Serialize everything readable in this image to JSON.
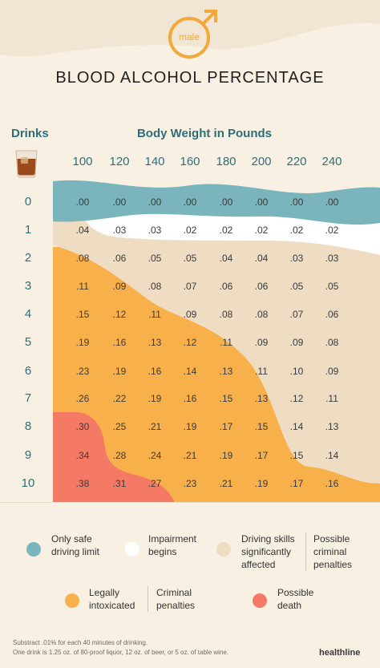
{
  "header": {
    "gender_label": "male",
    "title": "BLOOD ALCOHOL PERCENTAGE"
  },
  "table": {
    "drinks_label": "Drinks",
    "weight_label": "Body Weight in Pounds",
    "weights": [
      "100",
      "120",
      "140",
      "160",
      "180",
      "200",
      "220",
      "240"
    ],
    "drinks": [
      "0",
      "1",
      "2",
      "3",
      "4",
      "5",
      "6",
      "7",
      "8",
      "9",
      "10"
    ],
    "values": [
      [
        ".00",
        ".00",
        ".00",
        ".00",
        ".00",
        ".00",
        ".00",
        ".00"
      ],
      [
        ".04",
        ".03",
        ".03",
        ".02",
        ".02",
        ".02",
        ".02",
        ".02"
      ],
      [
        ".08",
        ".06",
        ".05",
        ".05",
        ".04",
        ".04",
        ".03",
        ".03"
      ],
      [
        ".11",
        ".09",
        ".08",
        ".07",
        ".06",
        ".06",
        ".05",
        ".05"
      ],
      [
        ".15",
        ".12",
        ".11",
        ".09",
        ".08",
        ".08",
        ".07",
        ".06"
      ],
      [
        ".19",
        ".16",
        ".13",
        ".12",
        ".11",
        ".09",
        ".09",
        ".08"
      ],
      [
        ".23",
        ".19",
        ".16",
        ".14",
        ".13",
        ".11",
        ".10",
        ".09"
      ],
      [
        ".26",
        ".22",
        ".19",
        ".16",
        ".15",
        ".13",
        ".12",
        ".11"
      ],
      [
        ".30",
        ".25",
        ".21",
        ".19",
        ".17",
        ".15",
        ".14",
        ".13"
      ],
      [
        ".34",
        ".28",
        ".24",
        ".21",
        ".19",
        ".17",
        ".15",
        ".14"
      ],
      [
        ".38",
        ".31",
        ".27",
        ".23",
        ".21",
        ".19",
        ".17",
        ".16"
      ]
    ]
  },
  "colors": {
    "teal": "#7ab5bd",
    "white": "#ffffff",
    "beige": "#eedcc3",
    "orange": "#f8b04b",
    "red": "#f47a66",
    "background": "#f8f0e3",
    "heading": "#2f6e78"
  },
  "legend": [
    {
      "label": "Only safe driving limit",
      "line1": "Only safe",
      "line2": "driving limit",
      "line3": "",
      "color": "#7ab5bd"
    },
    {
      "label": "Impairment begins",
      "line1": "Impairment",
      "line2": "begins",
      "line3": "",
      "color": "#ffffff"
    },
    {
      "label": "Driving skills significantly affected",
      "line1": "Driving skills",
      "line2": "significantly",
      "line3": "affected",
      "color": "#eedcc3"
    },
    {
      "label": "Possible criminal penalties",
      "line1": "Possible",
      "line2": "criminal",
      "line3": "penalties",
      "color": ""
    },
    {
      "label": "Legally intoxicated",
      "line1": "Legally",
      "line2": "intoxicated",
      "line3": "",
      "color": "#f8b04b"
    },
    {
      "label": "Criminal penalties",
      "line1": "Criminal",
      "line2": "penalties",
      "line3": "",
      "color": ""
    },
    {
      "label": "Possible death",
      "line1": "Possible",
      "line2": "death",
      "line3": "",
      "color": "#f47a66"
    }
  ],
  "footnote": {
    "line1": "Substract .01% for each 40 minutes of drinking.",
    "line2": "One drink is 1.25 oz. of 80-proof liquor, 12 oz. of beer, or 5 oz. of table wine."
  },
  "brand": "healthline",
  "icons": {
    "gender": "male-symbol-icon",
    "drink": "whiskey-glass-icon"
  }
}
